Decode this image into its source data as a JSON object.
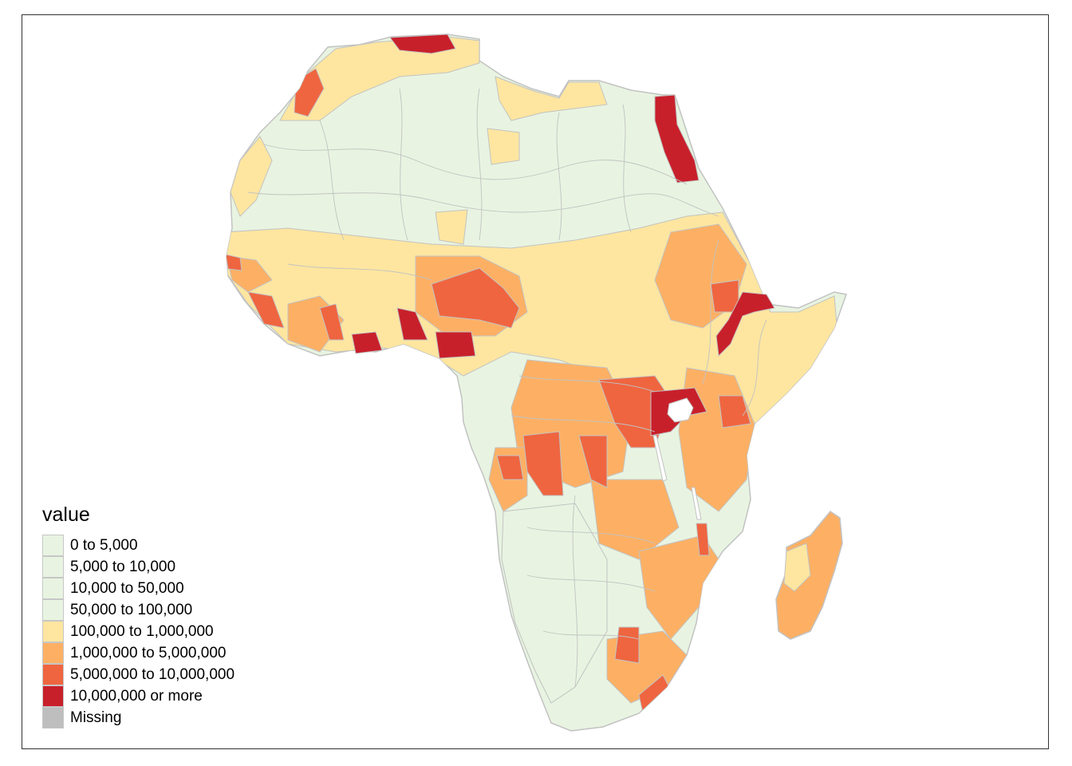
{
  "legend": {
    "title": "value",
    "items": [
      {
        "label": "0 to 5,000",
        "color": "#e8f4e1"
      },
      {
        "label": "5,000 to 10,000",
        "color": "#e8f4e1"
      },
      {
        "label": "10,000 to 50,000",
        "color": "#e8f4e1"
      },
      {
        "label": "50,000 to 100,000",
        "color": "#e8f4e1"
      },
      {
        "label": "100,000 to 1,000,000",
        "color": "#fee6a0"
      },
      {
        "label": "1,000,000 to 5,000,000",
        "color": "#fdb064"
      },
      {
        "label": "5,000,000 to 10,000,000",
        "color": "#ef6540"
      },
      {
        "label": "10,000,000 or more",
        "color": "#c8202b"
      },
      {
        "label": "Missing",
        "color": "#bebebe"
      }
    ]
  },
  "map": {
    "region": "Africa",
    "border_color": "#c2c2c2",
    "water_color": "#ffffff"
  }
}
